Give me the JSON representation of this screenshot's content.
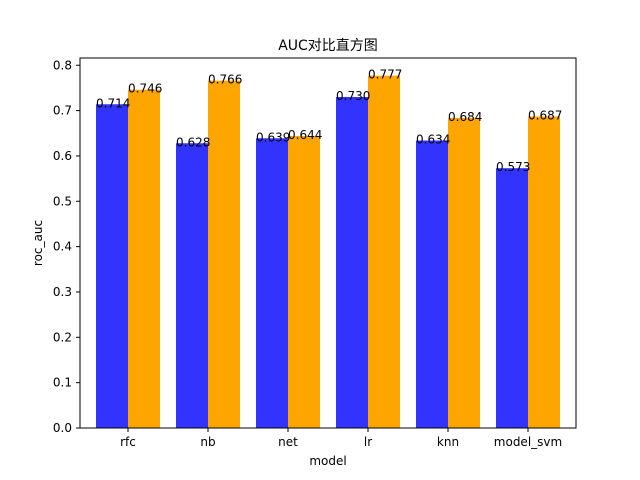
{
  "chart_data": {
    "type": "bar",
    "title": "AUC对比直方图",
    "xlabel": "model",
    "ylabel": "roc_auc",
    "categories": [
      "rfc",
      "nb",
      "net",
      "lr",
      "knn",
      "model_svm"
    ],
    "series": [
      {
        "values": [
          0.714,
          0.628,
          0.639,
          0.73,
          0.634,
          0.573
        ],
        "labels": [
          "0.714",
          "0.628",
          "0.639",
          "0.730",
          "0.634",
          "0.573"
        ],
        "color": "#3333ff"
      },
      {
        "values": [
          0.746,
          0.766,
          0.644,
          0.777,
          0.684,
          0.687
        ],
        "labels": [
          "0.746",
          "0.766",
          "0.644",
          "0.777",
          "0.684",
          "0.687"
        ],
        "color": "#ffa500"
      }
    ],
    "ylim": [
      0,
      0.816
    ],
    "yticks": [
      0.0,
      0.1,
      0.2,
      0.3,
      0.4,
      0.5,
      0.6,
      0.7,
      0.8
    ],
    "ytick_labels": [
      "0.0",
      "0.1",
      "0.2",
      "0.3",
      "0.4",
      "0.5",
      "0.6",
      "0.7",
      "0.8"
    ],
    "grid": false,
    "legend": "none"
  }
}
